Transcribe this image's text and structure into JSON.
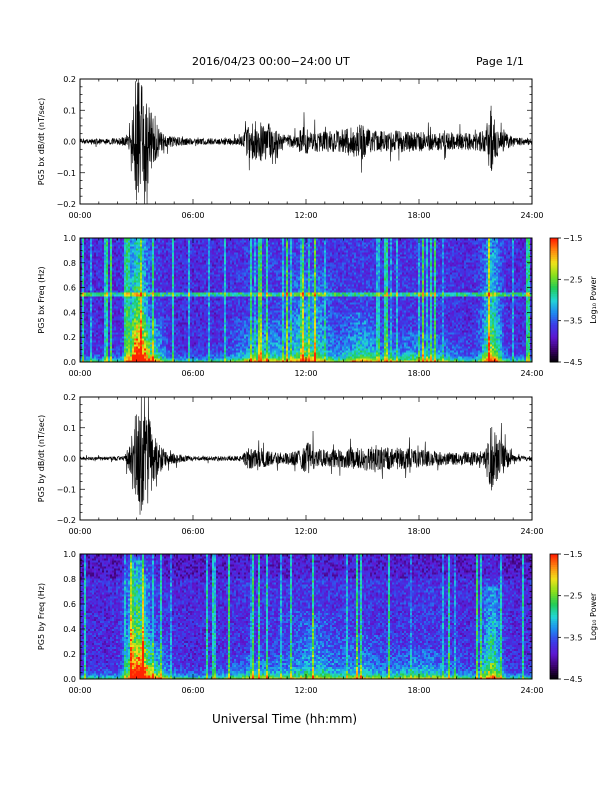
{
  "header": {
    "title": "2016/04/23  00:00−24:00 UT",
    "page": "Page 1/1"
  },
  "xaxis": {
    "title": "Universal Time (hh:mm)",
    "ticks": [
      "00:00",
      "06:00",
      "12:00",
      "18:00",
      "24:00"
    ]
  },
  "colors": {
    "trace": "#000000",
    "frame": "#000000",
    "colorbar": [
      "#000000",
      "#3a0068",
      "#5e16d0",
      "#3b3ce8",
      "#1f8af0",
      "#22d6d6",
      "#22cc55",
      "#88e01c",
      "#f0e21a",
      "#ff8a10",
      "#ff1a00"
    ]
  },
  "chart_data": [
    {
      "type": "line",
      "ylabel": "PG5 bx dB/dt (nT/sec)",
      "xlim": [
        0,
        24
      ],
      "ylim": [
        -0.2,
        0.2
      ],
      "yticks": [
        "0.2",
        "0.1",
        "0.0",
        "−0.1",
        "−0.2"
      ],
      "amplitude_envelope": [
        {
          "t": 0,
          "amp": 0.008
        },
        {
          "t": 1.5,
          "amp": 0.01
        },
        {
          "t": 2.2,
          "amp": 0.012
        },
        {
          "t": 2.7,
          "amp": 0.03
        },
        {
          "t": 2.95,
          "amp": 0.2
        },
        {
          "t": 3.2,
          "amp": 0.2
        },
        {
          "t": 3.5,
          "amp": 0.16
        },
        {
          "t": 3.9,
          "amp": 0.07
        },
        {
          "t": 4.5,
          "amp": 0.02
        },
        {
          "t": 6,
          "amp": 0.01
        },
        {
          "t": 8.5,
          "amp": 0.012
        },
        {
          "t": 8.9,
          "amp": 0.05
        },
        {
          "t": 9.3,
          "amp": 0.07
        },
        {
          "t": 10,
          "amp": 0.06
        },
        {
          "t": 10.6,
          "amp": 0.025
        },
        {
          "t": 11.5,
          "amp": 0.02
        },
        {
          "t": 11.8,
          "amp": 0.05
        },
        {
          "t": 12.2,
          "amp": 0.035
        },
        {
          "t": 13.5,
          "amp": 0.035
        },
        {
          "t": 14.6,
          "amp": 0.05
        },
        {
          "t": 15,
          "amp": 0.06
        },
        {
          "t": 15.4,
          "amp": 0.035
        },
        {
          "t": 17,
          "amp": 0.035
        },
        {
          "t": 18.5,
          "amp": 0.03
        },
        {
          "t": 20,
          "amp": 0.025
        },
        {
          "t": 21.5,
          "amp": 0.035
        },
        {
          "t": 21.8,
          "amp": 0.1
        },
        {
          "t": 22.1,
          "amp": 0.06
        },
        {
          "t": 23,
          "amp": 0.012
        },
        {
          "t": 24,
          "amp": 0.012
        }
      ]
    },
    {
      "type": "heatmap",
      "ylabel": "PG5 bx Freq (Hz)",
      "xlim": [
        0,
        24
      ],
      "ylim": [
        0,
        1.0
      ],
      "yticks": [
        "1.0",
        "0.8",
        "0.6",
        "0.4",
        "0.2",
        "0.0"
      ],
      "colorbar": {
        "label": "Log₁₀ Power",
        "range": [
          -4.5,
          -1.5
        ],
        "ticks": [
          "−1.5",
          "−2.5",
          "−3.5",
          "−4.5"
        ]
      },
      "line_freq_hz": 0.55,
      "activity": [
        {
          "t": 3.05,
          "width": 0.35,
          "strength": 1.0,
          "reach": 1.0
        },
        {
          "t": 3.7,
          "width": 0.5,
          "strength": 0.6,
          "reach": 0.35
        },
        {
          "t": 9.6,
          "width": 1.0,
          "strength": 0.45,
          "reach": 0.35
        },
        {
          "t": 12.2,
          "width": 0.8,
          "strength": 0.55,
          "reach": 0.75
        },
        {
          "t": 14.9,
          "width": 0.7,
          "strength": 0.45,
          "reach": 0.4
        },
        {
          "t": 18.0,
          "width": 1.5,
          "strength": 0.35,
          "reach": 0.25
        },
        {
          "t": 21.85,
          "width": 0.35,
          "strength": 0.75,
          "reach": 1.0
        }
      ]
    },
    {
      "type": "line",
      "ylabel": "PG5 by dB/dt (nT/sec)",
      "xlim": [
        0,
        24
      ],
      "ylim": [
        -0.2,
        0.2
      ],
      "yticks": [
        "0.2",
        "0.1",
        "0.0",
        "−0.1",
        "−0.2"
      ],
      "amplitude_envelope": [
        {
          "t": 0,
          "amp": 0.005
        },
        {
          "t": 1.5,
          "amp": 0.006
        },
        {
          "t": 2.3,
          "amp": 0.008
        },
        {
          "t": 2.7,
          "amp": 0.05
        },
        {
          "t": 2.95,
          "amp": 0.2
        },
        {
          "t": 3.25,
          "amp": 0.2
        },
        {
          "t": 3.6,
          "amp": 0.15
        },
        {
          "t": 4.0,
          "amp": 0.07
        },
        {
          "t": 4.6,
          "amp": 0.02
        },
        {
          "t": 6,
          "amp": 0.007
        },
        {
          "t": 8.6,
          "amp": 0.008
        },
        {
          "t": 8.9,
          "amp": 0.035
        },
        {
          "t": 9.5,
          "amp": 0.03
        },
        {
          "t": 10.6,
          "amp": 0.02
        },
        {
          "t": 11.6,
          "amp": 0.025
        },
        {
          "t": 12.1,
          "amp": 0.055
        },
        {
          "t": 12.6,
          "amp": 0.03
        },
        {
          "t": 14.5,
          "amp": 0.03
        },
        {
          "t": 15.0,
          "amp": 0.04
        },
        {
          "t": 17,
          "amp": 0.035
        },
        {
          "t": 19.5,
          "amp": 0.02
        },
        {
          "t": 21.5,
          "amp": 0.025
        },
        {
          "t": 21.8,
          "amp": 0.12
        },
        {
          "t": 22.1,
          "amp": 0.08
        },
        {
          "t": 23,
          "amp": 0.01
        },
        {
          "t": 24,
          "amp": 0.008
        }
      ]
    },
    {
      "type": "heatmap",
      "ylabel": "PG5 by Freq (Hz)",
      "xlim": [
        0,
        24
      ],
      "ylim": [
        0,
        1.0
      ],
      "yticks": [
        "1.0",
        "0.8",
        "0.6",
        "0.4",
        "0.2",
        "0.0"
      ],
      "colorbar": {
        "label": "Log₁₀ Power",
        "range": [
          -4.5,
          -1.5
        ],
        "ticks": [
          "−1.5",
          "−2.5",
          "−3.5",
          "−4.5"
        ]
      },
      "line_freq_hz": null,
      "activity": [
        {
          "t": 3.05,
          "width": 0.4,
          "strength": 1.0,
          "reach": 0.95
        },
        {
          "t": 3.8,
          "width": 0.6,
          "strength": 0.55,
          "reach": 0.3
        },
        {
          "t": 9.5,
          "width": 1.2,
          "strength": 0.3,
          "reach": 0.2
        },
        {
          "t": 12.3,
          "width": 0.9,
          "strength": 0.35,
          "reach": 0.55
        },
        {
          "t": 14.8,
          "width": 0.9,
          "strength": 0.3,
          "reach": 0.35
        },
        {
          "t": 18.2,
          "width": 1.4,
          "strength": 0.35,
          "reach": 0.25
        },
        {
          "t": 21.85,
          "width": 0.35,
          "strength": 0.7,
          "reach": 0.75
        }
      ]
    }
  ]
}
